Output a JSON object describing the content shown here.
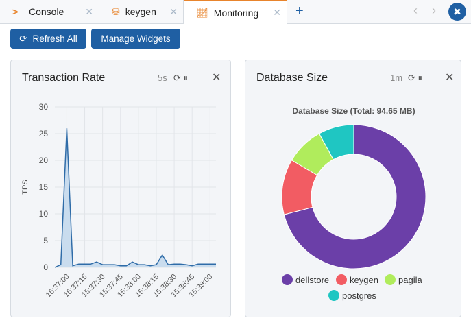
{
  "tabs": [
    "Console",
    "keygen",
    "Monitoring"
  ],
  "buttons": [
    "Refresh All",
    "Manage Widgets"
  ],
  "widgets": [
    {
      "title": "Transaction Rate",
      "interval": "5s",
      "chart_data": {
        "type": "line",
        "y_label": "TPS",
        "categories": [
          null,
          null,
          "15:37:00",
          null,
          null,
          "15:37:15",
          null,
          null,
          "15:37:30",
          null,
          null,
          "15:37:45",
          null,
          null,
          "15:38:00",
          null,
          null,
          "15:38:15",
          null,
          null,
          "15:38:30",
          null,
          null,
          "15:38:45",
          null,
          null,
          "15:39:00",
          null
        ],
        "values": [
          0,
          0.5,
          26,
          0.3,
          0.6,
          0.6,
          0.6,
          1,
          0.5,
          0.5,
          0.5,
          0.3,
          0.3,
          1,
          0.5,
          0.5,
          0.3,
          0.5,
          2.3,
          0.5,
          0.6,
          0.6,
          0.5,
          0.3,
          0.6,
          0.6,
          0.6,
          0.6
        ],
        "color": "#2f6ca8",
        "fill": "#c9dcee",
        "ylim": [
          0,
          30
        ],
        "yticks": [
          0,
          5,
          10,
          15,
          20,
          25,
          30
        ],
        "grid": true
      }
    },
    {
      "title": "Database Size",
      "interval": "1m",
      "chart_data": {
        "type": "donut",
        "title": "Database Size (Total: 94.65 MB)",
        "categories": [
          "dellstore",
          "keygen",
          "pagila",
          "postgres"
        ],
        "values": [
          67.2,
          11.8,
          8.1,
          7.55
        ],
        "colors": [
          "#6b3fa8",
          "#f25c63",
          "#b0ec5c",
          "#1fc6c2"
        ]
      }
    }
  ]
}
